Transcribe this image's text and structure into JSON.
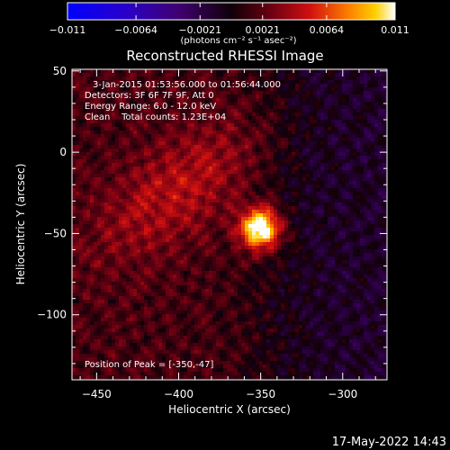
{
  "chart_data": {
    "type": "heatmap",
    "title": "Reconstructed RHESSI Image",
    "xlabel": "Heliocentric X (arcsec)",
    "ylabel": "Heliocentric Y (arcsec)",
    "xlim": [
      -465,
      -273
    ],
    "ylim": [
      -140,
      51
    ],
    "xticks": [
      -450,
      -400,
      -350,
      -300
    ],
    "yticks": [
      50,
      0,
      -50,
      -100
    ],
    "xtick_labels": [
      "−450",
      "−400",
      "−350",
      "−300"
    ],
    "ytick_labels": [
      "50",
      "0",
      "−50",
      "−100"
    ],
    "colorbar": {
      "range": [
        -0.011,
        0.011
      ],
      "ticks": [
        -0.011,
        -0.0064,
        -0.0021,
        0.0021,
        0.0064,
        0.011
      ],
      "tick_labels": [
        "−0.011",
        "−0.0064",
        "−0.0021",
        "0.0021",
        "0.0064",
        "0.011"
      ],
      "units_label": "(photons cm⁻² s⁻¹ asec⁻²)"
    },
    "annotations": [
      "3-Jan-2015 01:53:56.000 to 01:56:44.000",
      "Detectors: 3F 6F 7F 9F, Att 0",
      "Energy Range: 6.0 - 12.0 keV",
      "Clean    Total counts: 1.23E+04"
    ],
    "peak_label": "Position of Peak = [-350,-47]",
    "peak": {
      "x": -350,
      "y": -47
    },
    "grid": false
  },
  "footer_date": "17-May-2022 14:43"
}
